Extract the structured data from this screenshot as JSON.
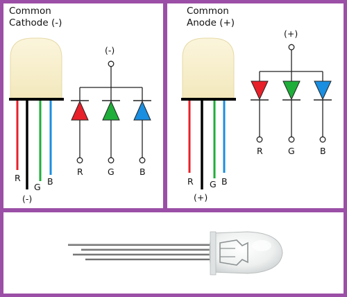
{
  "cathode": {
    "title_line1": "Common",
    "title_line2": "Cathode (-)",
    "common_symbol": "(-)",
    "lead_labels": {
      "r": "R",
      "g": "G",
      "b": "B",
      "common": "(-)"
    },
    "diode_labels": [
      "R",
      "G",
      "B"
    ]
  },
  "anode": {
    "title_line1": "Common",
    "title_line2": "Anode (+)",
    "common_symbol": "(+)",
    "lead_labels": {
      "r": "R",
      "g": "G",
      "b": "B",
      "common": "(+)"
    },
    "diode_labels": [
      "R",
      "G",
      "B"
    ]
  },
  "colors": {
    "frame": "#9b4fa6",
    "led_body": "#f6edc6",
    "red": "#e8202a",
    "green": "#1fae3a",
    "blue": "#1a8ee0",
    "black": "#000000"
  }
}
